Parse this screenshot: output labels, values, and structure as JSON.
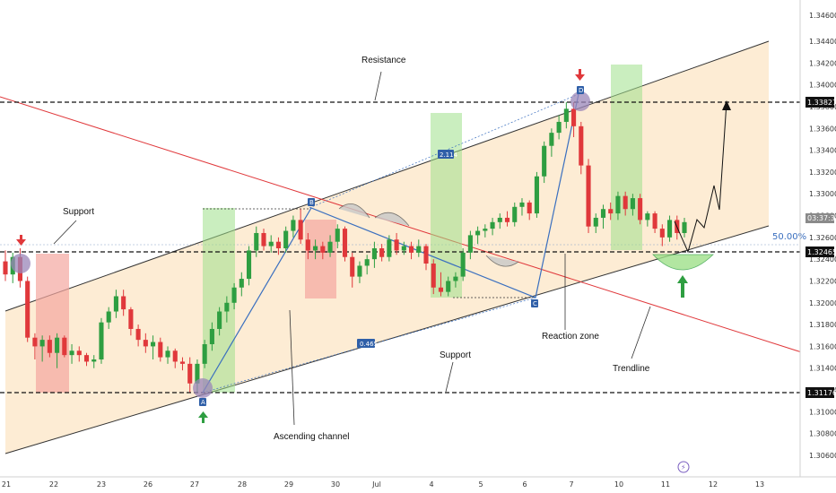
{
  "chart_data": {
    "type": "candlestick",
    "yticks": [
      "1.30600",
      "1.30800",
      "1.31000",
      "1.31200",
      "1.31400",
      "1.31600",
      "1.31800",
      "1.32000",
      "1.32200",
      "1.32400",
      "1.32600",
      "1.32800",
      "1.33000",
      "1.33200",
      "1.33400",
      "1.33600",
      "1.33800",
      "1.34000",
      "1.34200",
      "1.34400"
    ],
    "xticks": [
      "21",
      "22",
      "23",
      "26",
      "27",
      "28",
      "29",
      "30",
      "Jul",
      "4",
      "5",
      "6",
      "7",
      "10",
      "11",
      "12",
      "13"
    ],
    "price_labels": {
      "top": "1.33827",
      "mid": "1.32465",
      "bottom": "1.31176",
      "current_time": "03:37:35",
      "cutoff": "1.34600"
    },
    "annotations": {
      "resistance": "Resistance",
      "support_left": "Support",
      "support_bottom": "Support",
      "ascending_channel": "Ascending channel",
      "reaction_zone": "Reaction zone",
      "trendline": "Trendline",
      "fib": "50.00%",
      "ratio_1": "2.114",
      "ratio_2": "0.465",
      "point_a": "A",
      "point_b": "B",
      "point_c": "C",
      "point_d": "D"
    },
    "levels": {
      "resistance": 1.33827,
      "support": 1.31176,
      "reaction": 1.32465
    },
    "colors": {
      "up": "#2e9e41",
      "down": "#e0383b",
      "channel": "#fde6c4",
      "trendline": "#e0383b"
    },
    "candles": [
      {
        "o": 1.3238,
        "h": 1.3248,
        "l": 1.322,
        "c": 1.3226
      },
      {
        "o": 1.3226,
        "h": 1.3246,
        "l": 1.3218,
        "c": 1.3242
      },
      {
        "o": 1.3242,
        "h": 1.325,
        "l": 1.3214,
        "c": 1.322
      },
      {
        "o": 1.322,
        "h": 1.3224,
        "l": 1.3164,
        "c": 1.3168
      },
      {
        "o": 1.3168,
        "h": 1.3172,
        "l": 1.3148,
        "c": 1.316
      },
      {
        "o": 1.316,
        "h": 1.317,
        "l": 1.3146,
        "c": 1.3166
      },
      {
        "o": 1.3166,
        "h": 1.317,
        "l": 1.315,
        "c": 1.3154
      },
      {
        "o": 1.3154,
        "h": 1.3172,
        "l": 1.314,
        "c": 1.3168
      },
      {
        "o": 1.3168,
        "h": 1.317,
        "l": 1.315,
        "c": 1.3152
      },
      {
        "o": 1.3152,
        "h": 1.3162,
        "l": 1.3144,
        "c": 1.3156
      },
      {
        "o": 1.3156,
        "h": 1.316,
        "l": 1.3146,
        "c": 1.3152
      },
      {
        "o": 1.3152,
        "h": 1.3154,
        "l": 1.3142,
        "c": 1.3146
      },
      {
        "o": 1.3146,
        "h": 1.3152,
        "l": 1.314,
        "c": 1.3148
      },
      {
        "o": 1.3148,
        "h": 1.3186,
        "l": 1.3144,
        "c": 1.3182
      },
      {
        "o": 1.3182,
        "h": 1.3196,
        "l": 1.3176,
        "c": 1.3192
      },
      {
        "o": 1.3192,
        "h": 1.3212,
        "l": 1.3186,
        "c": 1.3206
      },
      {
        "o": 1.3206,
        "h": 1.3212,
        "l": 1.3188,
        "c": 1.3194
      },
      {
        "o": 1.3194,
        "h": 1.3196,
        "l": 1.317,
        "c": 1.3176
      },
      {
        "o": 1.3176,
        "h": 1.318,
        "l": 1.316,
        "c": 1.3166
      },
      {
        "o": 1.3166,
        "h": 1.3172,
        "l": 1.3154,
        "c": 1.316
      },
      {
        "o": 1.316,
        "h": 1.317,
        "l": 1.3148,
        "c": 1.3164
      },
      {
        "o": 1.3164,
        "h": 1.3168,
        "l": 1.3146,
        "c": 1.315
      },
      {
        "o": 1.315,
        "h": 1.316,
        "l": 1.3144,
        "c": 1.3156
      },
      {
        "o": 1.3156,
        "h": 1.3158,
        "l": 1.314,
        "c": 1.3146
      },
      {
        "o": 1.3146,
        "h": 1.315,
        "l": 1.3138,
        "c": 1.3144
      },
      {
        "o": 1.3144,
        "h": 1.315,
        "l": 1.3118,
        "c": 1.3126
      },
      {
        "o": 1.3126,
        "h": 1.3148,
        "l": 1.3118,
        "c": 1.3144
      },
      {
        "o": 1.3144,
        "h": 1.3166,
        "l": 1.314,
        "c": 1.3162
      },
      {
        "o": 1.3162,
        "h": 1.3182,
        "l": 1.3156,
        "c": 1.3176
      },
      {
        "o": 1.3176,
        "h": 1.3196,
        "l": 1.317,
        "c": 1.3192
      },
      {
        "o": 1.3192,
        "h": 1.3206,
        "l": 1.3182,
        "c": 1.32
      },
      {
        "o": 1.32,
        "h": 1.3218,
        "l": 1.3194,
        "c": 1.3214
      },
      {
        "o": 1.3214,
        "h": 1.3228,
        "l": 1.3206,
        "c": 1.3222
      },
      {
        "o": 1.3222,
        "h": 1.3252,
        "l": 1.3216,
        "c": 1.3248
      },
      {
        "o": 1.3248,
        "h": 1.327,
        "l": 1.3242,
        "c": 1.3264
      },
      {
        "o": 1.3264,
        "h": 1.3268,
        "l": 1.3248,
        "c": 1.3252
      },
      {
        "o": 1.3252,
        "h": 1.3262,
        "l": 1.3246,
        "c": 1.3256
      },
      {
        "o": 1.3256,
        "h": 1.326,
        "l": 1.3244,
        "c": 1.325
      },
      {
        "o": 1.325,
        "h": 1.327,
        "l": 1.3246,
        "c": 1.3266
      },
      {
        "o": 1.3266,
        "h": 1.328,
        "l": 1.326,
        "c": 1.3276
      },
      {
        "o": 1.3276,
        "h": 1.3286,
        "l": 1.3254,
        "c": 1.3258
      },
      {
        "o": 1.3258,
        "h": 1.3264,
        "l": 1.324,
        "c": 1.3248
      },
      {
        "o": 1.3248,
        "h": 1.3258,
        "l": 1.324,
        "c": 1.3252
      },
      {
        "o": 1.3252,
        "h": 1.3256,
        "l": 1.324,
        "c": 1.3246
      },
      {
        "o": 1.3246,
        "h": 1.3262,
        "l": 1.3242,
        "c": 1.3256
      },
      {
        "o": 1.3256,
        "h": 1.3272,
        "l": 1.325,
        "c": 1.3268
      },
      {
        "o": 1.3268,
        "h": 1.327,
        "l": 1.3238,
        "c": 1.3242
      },
      {
        "o": 1.3242,
        "h": 1.3246,
        "l": 1.3214,
        "c": 1.3224
      },
      {
        "o": 1.3224,
        "h": 1.3238,
        "l": 1.3218,
        "c": 1.3234
      },
      {
        "o": 1.3234,
        "h": 1.3244,
        "l": 1.3226,
        "c": 1.324
      },
      {
        "o": 1.324,
        "h": 1.3256,
        "l": 1.3232,
        "c": 1.325
      },
      {
        "o": 1.325,
        "h": 1.3254,
        "l": 1.3238,
        "c": 1.3242
      },
      {
        "o": 1.3242,
        "h": 1.3262,
        "l": 1.3238,
        "c": 1.3258
      },
      {
        "o": 1.3258,
        "h": 1.3264,
        "l": 1.3244,
        "c": 1.3248
      },
      {
        "o": 1.3248,
        "h": 1.3256,
        "l": 1.3244,
        "c": 1.3252
      },
      {
        "o": 1.3252,
        "h": 1.3256,
        "l": 1.324,
        "c": 1.3246
      },
      {
        "o": 1.3246,
        "h": 1.3258,
        "l": 1.3242,
        "c": 1.3252
      },
      {
        "o": 1.3252,
        "h": 1.3254,
        "l": 1.323,
        "c": 1.3236
      },
      {
        "o": 1.3236,
        "h": 1.324,
        "l": 1.3208,
        "c": 1.3214
      },
      {
        "o": 1.3214,
        "h": 1.3228,
        "l": 1.3206,
        "c": 1.321
      },
      {
        "o": 1.321,
        "h": 1.3224,
        "l": 1.3206,
        "c": 1.322
      },
      {
        "o": 1.322,
        "h": 1.3228,
        "l": 1.3214,
        "c": 1.3224
      },
      {
        "o": 1.3224,
        "h": 1.325,
        "l": 1.322,
        "c": 1.3246
      },
      {
        "o": 1.3246,
        "h": 1.3266,
        "l": 1.324,
        "c": 1.3262
      },
      {
        "o": 1.3262,
        "h": 1.327,
        "l": 1.3254,
        "c": 1.3266
      },
      {
        "o": 1.3266,
        "h": 1.3272,
        "l": 1.326,
        "c": 1.3268
      },
      {
        "o": 1.3268,
        "h": 1.3278,
        "l": 1.3262,
        "c": 1.3274
      },
      {
        "o": 1.3274,
        "h": 1.3282,
        "l": 1.3268,
        "c": 1.3278
      },
      {
        "o": 1.3278,
        "h": 1.3284,
        "l": 1.327,
        "c": 1.3274
      },
      {
        "o": 1.3274,
        "h": 1.3292,
        "l": 1.327,
        "c": 1.3288
      },
      {
        "o": 1.3288,
        "h": 1.3296,
        "l": 1.328,
        "c": 1.3292
      },
      {
        "o": 1.3292,
        "h": 1.3294,
        "l": 1.3276,
        "c": 1.3282
      },
      {
        "o": 1.3282,
        "h": 1.332,
        "l": 1.3278,
        "c": 1.3316
      },
      {
        "o": 1.3316,
        "h": 1.3348,
        "l": 1.331,
        "c": 1.3344
      },
      {
        "o": 1.3344,
        "h": 1.336,
        "l": 1.3334,
        "c": 1.3356
      },
      {
        "o": 1.3356,
        "h": 1.3372,
        "l": 1.335,
        "c": 1.3366
      },
      {
        "o": 1.3366,
        "h": 1.3384,
        "l": 1.336,
        "c": 1.3378
      },
      {
        "o": 1.3378,
        "h": 1.3384,
        "l": 1.3352,
        "c": 1.3362
      },
      {
        "o": 1.3362,
        "h": 1.3366,
        "l": 1.3318,
        "c": 1.3326
      },
      {
        "o": 1.3326,
        "h": 1.3332,
        "l": 1.3264,
        "c": 1.327
      },
      {
        "o": 1.327,
        "h": 1.3282,
        "l": 1.3264,
        "c": 1.3278
      },
      {
        "o": 1.3278,
        "h": 1.329,
        "l": 1.3268,
        "c": 1.3286
      },
      {
        "o": 1.3286,
        "h": 1.3292,
        "l": 1.3276,
        "c": 1.3282
      },
      {
        "o": 1.3282,
        "h": 1.3302,
        "l": 1.3276,
        "c": 1.3298
      },
      {
        "o": 1.3298,
        "h": 1.3302,
        "l": 1.328,
        "c": 1.3286
      },
      {
        "o": 1.3286,
        "h": 1.33,
        "l": 1.328,
        "c": 1.3296
      },
      {
        "o": 1.3296,
        "h": 1.33,
        "l": 1.3272,
        "c": 1.3276
      },
      {
        "o": 1.3276,
        "h": 1.3284,
        "l": 1.327,
        "c": 1.3282
      },
      {
        "o": 1.3282,
        "h": 1.3284,
        "l": 1.3264,
        "c": 1.3268
      },
      {
        "o": 1.3268,
        "h": 1.3272,
        "l": 1.3252,
        "c": 1.326
      },
      {
        "o": 1.326,
        "h": 1.328,
        "l": 1.3256,
        "c": 1.3276
      },
      {
        "o": 1.3276,
        "h": 1.328,
        "l": 1.3258,
        "c": 1.3264
      },
      {
        "o": 1.3264,
        "h": 1.3278,
        "l": 1.326,
        "c": 1.3274
      }
    ],
    "candle_x_range": [
      6,
      763
    ]
  }
}
